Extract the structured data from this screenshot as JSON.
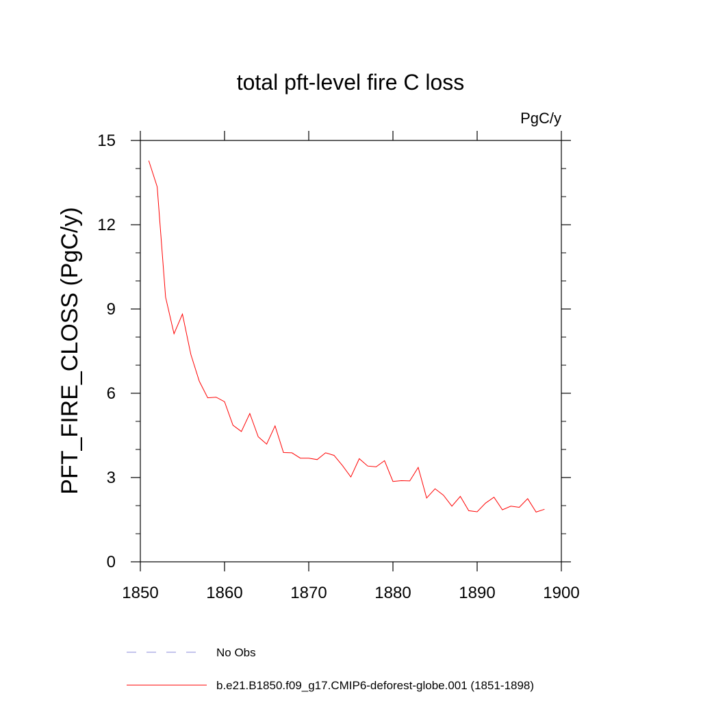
{
  "chart_data": {
    "type": "line",
    "title": "total pft-level fire C loss",
    "units": "PgC/y",
    "xlabel": "",
    "ylabel": "PFT_FIRE_CLOSS  (PgC/y)",
    "xlim": [
      1850,
      1900
    ],
    "ylim": [
      0,
      15
    ],
    "xticks": [
      1850,
      1860,
      1870,
      1880,
      1890,
      1900
    ],
    "xtick_labels": [
      "1850",
      "1860",
      "1870",
      "1880",
      "1890",
      "1900"
    ],
    "yticks": [
      0,
      3,
      6,
      9,
      12,
      15
    ],
    "ytick_labels": [
      "0",
      "3",
      "6",
      "9",
      "12",
      "15"
    ],
    "grid": false,
    "legend_position": "bottom",
    "series": [
      {
        "name": "b.e21.B1850.f09_g17.CMIP6-deforest-globe.001 (1851-1898)",
        "color": "#ff0000",
        "style": "solid",
        "x": [
          1851,
          1852,
          1853,
          1854,
          1855,
          1856,
          1857,
          1858,
          1859,
          1860,
          1861,
          1862,
          1863,
          1864,
          1865,
          1866,
          1867,
          1868,
          1869,
          1870,
          1871,
          1872,
          1873,
          1874,
          1875,
          1876,
          1877,
          1878,
          1879,
          1880,
          1881,
          1882,
          1883,
          1884,
          1885,
          1886,
          1887,
          1888,
          1889,
          1890,
          1891,
          1892,
          1893,
          1894,
          1895,
          1896,
          1897,
          1898
        ],
        "values": [
          14.28,
          13.35,
          9.42,
          8.12,
          8.82,
          7.38,
          6.43,
          5.84,
          5.86,
          5.7,
          4.86,
          4.64,
          5.28,
          4.45,
          4.19,
          4.84,
          3.89,
          3.88,
          3.69,
          3.69,
          3.64,
          3.88,
          3.79,
          3.43,
          3.02,
          3.67,
          3.41,
          3.38,
          3.6,
          2.86,
          2.89,
          2.88,
          3.36,
          2.27,
          2.6,
          2.37,
          1.98,
          2.33,
          1.82,
          1.78,
          2.09,
          2.3,
          1.85,
          1.98,
          1.94,
          2.25,
          1.77,
          1.87
        ]
      },
      {
        "name": "No Obs",
        "color": "#8a8ad8",
        "style": "dashed",
        "x": [],
        "values": []
      }
    ]
  }
}
